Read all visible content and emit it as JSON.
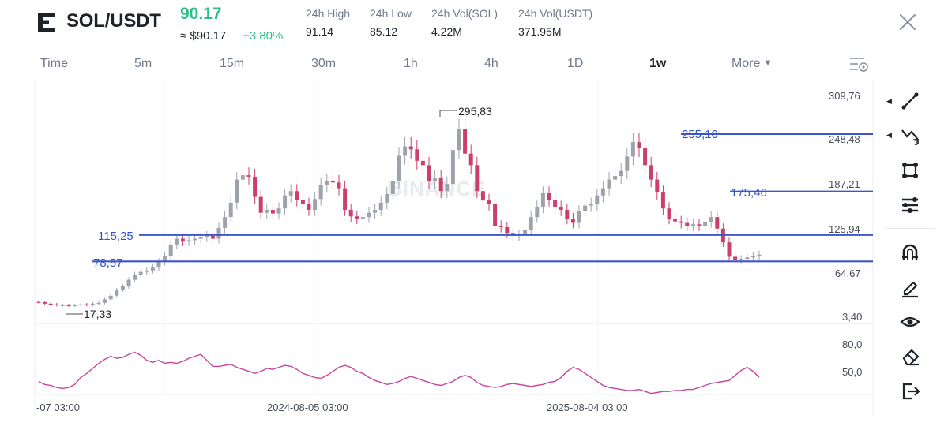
{
  "header": {
    "pair": "SOL/USDT",
    "last_price": "90.17",
    "approx_price": "≈ $90.17",
    "change_pct": "+3.80%",
    "stats": [
      {
        "label": "24h High",
        "value": "91.14"
      },
      {
        "label": "24h Low",
        "value": "85.12"
      },
      {
        "label": "24h Vol(SOL)",
        "value": "4.22M"
      },
      {
        "label": "24h Vol(USDT)",
        "value": "371.95M"
      }
    ]
  },
  "intervals": {
    "items": [
      "Time",
      "5m",
      "15m",
      "30m",
      "1h",
      "4h",
      "1D",
      "1w",
      "More"
    ],
    "active": "1w"
  },
  "chart_data": {
    "type": "candlestick",
    "watermark": "BINANCE",
    "price_axis_ticks": [
      "309,76",
      "248,48",
      "187,21",
      "125,94",
      "64,67",
      "3,40"
    ],
    "indicator_axis_ticks": [
      "80,0",
      "50,0"
    ],
    "time_axis_labels": [
      "-07 03:00",
      "2024-08-05 03:00",
      "2025-08-04 03:00"
    ],
    "annotations": {
      "high": "295,83",
      "low": "17,33"
    },
    "horizontal_levels": [
      {
        "label": "255,10",
        "value": 255.1
      },
      {
        "label": "175,46",
        "value": 175.46
      },
      {
        "label": "115,25",
        "value": 115.25
      },
      {
        "label": "78,57",
        "value": 78.57
      }
    ],
    "closes_approx": [
      22,
      20,
      19,
      18,
      18,
      17.5,
      18,
      19,
      18,
      20,
      21,
      26,
      31,
      39,
      44,
      53,
      60,
      64,
      66,
      70,
      78,
      86,
      102,
      110,
      106,
      108,
      110,
      112,
      114,
      110,
      125,
      140,
      160,
      192,
      198,
      196,
      168,
      146,
      150,
      145,
      152,
      170,
      176,
      164,
      158,
      150,
      165,
      184,
      190,
      188,
      180,
      150,
      141,
      138,
      140,
      146,
      150,
      160,
      172,
      190,
      225,
      238,
      234,
      218,
      212,
      190,
      194,
      176,
      186,
      233,
      262,
      228,
      212,
      176,
      163,
      158,
      128,
      126,
      118,
      114,
      116,
      122,
      140,
      154,
      173,
      164,
      154,
      150,
      138,
      132,
      148,
      156,
      158,
      170,
      180,
      192,
      197,
      204,
      224,
      244,
      236,
      212,
      192,
      174,
      152,
      138,
      134,
      132,
      128,
      130,
      128,
      133,
      140,
      124,
      105,
      85,
      80,
      82,
      84,
      86,
      88
    ]
  },
  "indicator": {
    "range": [
      35,
      90
    ],
    "values_approx": [
      48,
      45,
      44,
      42,
      41,
      42,
      45,
      52,
      56,
      61,
      66,
      70,
      73,
      71,
      72,
      75,
      77,
      74,
      69,
      67,
      69,
      66,
      67,
      66,
      68,
      71,
      73,
      75,
      69,
      63,
      63,
      64,
      65,
      62,
      60,
      58,
      56,
      58,
      61,
      60,
      62,
      64,
      63,
      60,
      56,
      54,
      52,
      51,
      54,
      58,
      62,
      64,
      62,
      58,
      56,
      52,
      49,
      47,
      45,
      46,
      48,
      51,
      53,
      51,
      49,
      47,
      45,
      44,
      46,
      48,
      52,
      54,
      52,
      47,
      44,
      43,
      42,
      43,
      45,
      46,
      45,
      44,
      43,
      44,
      45,
      47,
      48,
      52,
      58,
      62,
      60,
      56,
      52,
      48,
      44,
      42,
      41,
      40,
      39,
      39,
      40,
      38,
      36,
      37,
      38,
      38,
      39,
      39,
      40,
      40,
      42,
      44,
      46,
      47,
      48,
      49,
      54,
      59,
      62,
      58,
      52
    ]
  },
  "toolbar": {
    "tools": [
      "trend-line-icon",
      "fibonacci-icon",
      "rectangle-icon",
      "parallel-lines-icon",
      "magnet-icon",
      "pencil-icon",
      "eye-icon",
      "eraser-icon",
      "exit-icon"
    ]
  }
}
